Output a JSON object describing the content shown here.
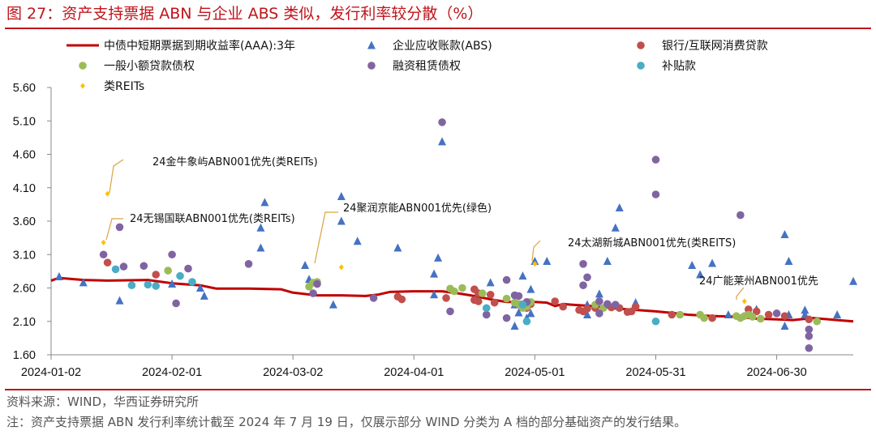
{
  "title": "图 27：资产支持票据 ABN 与企业 ABS 类似，发行利率较分散（%）",
  "source": "资料来源：WIND，华西证券研究所",
  "note": "注：资产支持票据 ABN 发行利率统计截至 2024 年 7 月 19 日，仅展示部分 WIND 分类为 A 档的部分基础资产的发行结果。",
  "chart_data": {
    "type": "scatter",
    "x_axis": {
      "type": "date",
      "range": [
        "2024-01-02",
        "2024-07-19"
      ],
      "tick_labels": [
        "2024-01-02",
        "2024-02-01",
        "2024-03-02",
        "2024-04-01",
        "2024-05-01",
        "2024-05-31",
        "2024-06-30"
      ],
      "tick_dates": [
        "2024-01-02",
        "2024-02-01",
        "2024-03-02",
        "2024-04-01",
        "2024-05-01",
        "2024-05-31",
        "2024-06-30"
      ]
    },
    "y_axis": {
      "range": [
        1.6,
        5.6
      ],
      "tick_labels": [
        "5.60",
        "5.10",
        "4.60",
        "4.10",
        "3.60",
        "3.10",
        "2.60",
        "2.10",
        "1.60"
      ],
      "ticks": [
        5.6,
        5.1,
        4.6,
        4.1,
        3.6,
        3.1,
        2.6,
        2.1,
        1.6
      ]
    },
    "grid": false,
    "legend_position": "top",
    "series": [
      {
        "name": "中债中短期票据到期收益率(AAA):3年",
        "kind": "line",
        "color": "#c00000",
        "points": [
          [
            "2024-01-02",
            2.71
          ],
          [
            "2024-01-04",
            2.75
          ],
          [
            "2024-01-10",
            2.72
          ],
          [
            "2024-01-16",
            2.71
          ],
          [
            "2024-01-26",
            2.72
          ],
          [
            "2024-02-01",
            2.67
          ],
          [
            "2024-02-08",
            2.64
          ],
          [
            "2024-02-12",
            2.59
          ],
          [
            "2024-02-20",
            2.59
          ],
          [
            "2024-02-28",
            2.58
          ],
          [
            "2024-03-02",
            2.53
          ],
          [
            "2024-03-08",
            2.49
          ],
          [
            "2024-03-14",
            2.49
          ],
          [
            "2024-03-20",
            2.48
          ],
          [
            "2024-03-23",
            2.5
          ],
          [
            "2024-03-26",
            2.54
          ],
          [
            "2024-04-01",
            2.55
          ],
          [
            "2024-04-08",
            2.55
          ],
          [
            "2024-04-12",
            2.52
          ],
          [
            "2024-04-16",
            2.48
          ],
          [
            "2024-04-20",
            2.43
          ],
          [
            "2024-04-24",
            2.39
          ],
          [
            "2024-05-01",
            2.39
          ],
          [
            "2024-05-04",
            2.38
          ],
          [
            "2024-05-06",
            2.33
          ],
          [
            "2024-05-08",
            2.36
          ],
          [
            "2024-05-10",
            2.35
          ],
          [
            "2024-05-15",
            2.33
          ],
          [
            "2024-05-22",
            2.29
          ],
          [
            "2024-05-31",
            2.25
          ],
          [
            "2024-06-05",
            2.22
          ],
          [
            "2024-06-08",
            2.2
          ],
          [
            "2024-06-14",
            2.18
          ],
          [
            "2024-06-20",
            2.17
          ],
          [
            "2024-06-25",
            2.14
          ],
          [
            "2024-06-30",
            2.13
          ],
          [
            "2024-07-04",
            2.12
          ],
          [
            "2024-07-09",
            2.15
          ],
          [
            "2024-07-15",
            2.12
          ],
          [
            "2024-07-19",
            2.1
          ]
        ]
      },
      {
        "name": "企业应收账款(ABS)",
        "kind": "triangle",
        "color": "#4472c4",
        "points": [
          [
            "2024-01-04",
            2.77
          ],
          [
            "2024-01-10",
            2.68
          ],
          [
            "2024-01-19",
            2.41
          ],
          [
            "2024-02-01",
            2.66
          ],
          [
            "2024-02-08",
            2.6
          ],
          [
            "2024-02-09",
            2.48
          ],
          [
            "2024-02-23",
            3.2
          ],
          [
            "2024-02-23",
            3.5
          ],
          [
            "2024-02-24",
            3.88
          ],
          [
            "2024-03-05",
            2.94
          ],
          [
            "2024-03-06",
            2.73
          ],
          [
            "2024-03-12",
            2.35
          ],
          [
            "2024-03-14",
            3.97
          ],
          [
            "2024-03-14",
            3.6
          ],
          [
            "2024-03-18",
            3.3
          ],
          [
            "2024-03-28",
            3.2
          ],
          [
            "2024-04-06",
            2.81
          ],
          [
            "2024-04-06",
            2.5
          ],
          [
            "2024-04-07",
            3.05
          ],
          [
            "2024-04-08",
            4.79
          ],
          [
            "2024-04-20",
            2.68
          ],
          [
            "2024-04-26",
            2.35
          ],
          [
            "2024-04-26",
            2.03
          ],
          [
            "2024-04-27",
            2.23
          ],
          [
            "2024-04-28",
            2.78
          ],
          [
            "2024-04-29",
            2.15
          ],
          [
            "2024-04-30",
            2.58
          ],
          [
            "2024-04-30",
            2.22
          ],
          [
            "2024-05-01",
            3.0
          ],
          [
            "2024-05-04",
            3.0
          ],
          [
            "2024-05-14",
            2.35
          ],
          [
            "2024-05-14",
            2.2
          ],
          [
            "2024-05-17",
            2.51
          ],
          [
            "2024-05-19",
            3.0
          ],
          [
            "2024-05-21",
            3.5
          ],
          [
            "2024-05-22",
            3.8
          ],
          [
            "2024-05-26",
            2.38
          ],
          [
            "2024-06-09",
            2.94
          ],
          [
            "2024-06-11",
            2.8
          ],
          [
            "2024-06-14",
            2.97
          ],
          [
            "2024-06-18",
            2.2
          ],
          [
            "2024-06-23",
            2.27
          ],
          [
            "2024-06-25",
            2.28
          ],
          [
            "2024-07-02",
            2.03
          ],
          [
            "2024-07-02",
            3.4
          ],
          [
            "2024-07-03",
            3.0
          ],
          [
            "2024-07-03",
            2.2
          ],
          [
            "2024-07-07",
            2.27
          ],
          [
            "2024-07-07",
            2.2
          ],
          [
            "2024-07-15",
            2.2
          ],
          [
            "2024-07-19",
            2.7
          ]
        ]
      },
      {
        "name": "银行/互联网消费贷款",
        "kind": "circle",
        "color": "#c0504d",
        "points": [
          [
            "2024-01-16",
            2.98
          ],
          [
            "2024-01-28",
            2.8
          ],
          [
            "2024-03-28",
            2.47
          ],
          [
            "2024-03-29",
            2.43
          ],
          [
            "2024-04-09",
            2.45
          ],
          [
            "2024-04-16",
            2.58
          ],
          [
            "2024-04-16",
            2.42
          ],
          [
            "2024-04-17",
            2.4
          ],
          [
            "2024-04-17",
            2.52
          ],
          [
            "2024-04-20",
            2.5
          ],
          [
            "2024-04-21",
            2.38
          ],
          [
            "2024-04-29",
            2.3
          ],
          [
            "2024-04-30",
            2.36
          ],
          [
            "2024-05-06",
            2.4
          ],
          [
            "2024-05-08",
            2.32
          ],
          [
            "2024-05-12",
            2.27
          ],
          [
            "2024-05-13",
            2.25
          ],
          [
            "2024-05-14",
            2.29
          ],
          [
            "2024-05-16",
            2.3
          ],
          [
            "2024-05-20",
            2.31
          ],
          [
            "2024-05-22",
            2.3
          ],
          [
            "2024-05-24",
            2.24
          ],
          [
            "2024-05-25",
            2.25
          ],
          [
            "2024-05-26",
            2.32
          ],
          [
            "2024-06-04",
            2.2
          ],
          [
            "2024-06-14",
            2.15
          ],
          [
            "2024-06-23",
            2.28
          ],
          [
            "2024-06-25",
            2.25
          ],
          [
            "2024-06-28",
            2.2
          ],
          [
            "2024-07-02",
            2.18
          ],
          [
            "2024-07-08",
            2.13
          ]
        ]
      },
      {
        "name": "一般小额贷款债权",
        "kind": "circle",
        "color": "#9bbb59",
        "points": [
          [
            "2024-01-31",
            2.86
          ],
          [
            "2024-03-06",
            2.62
          ],
          [
            "2024-03-07",
            2.68
          ],
          [
            "2024-03-08",
            2.69
          ],
          [
            "2024-04-10",
            2.59
          ],
          [
            "2024-04-11",
            2.55
          ],
          [
            "2024-04-13",
            2.6
          ],
          [
            "2024-04-18",
            2.52
          ],
          [
            "2024-04-24",
            2.44
          ],
          [
            "2024-04-26",
            2.38
          ],
          [
            "2024-04-27",
            2.36
          ],
          [
            "2024-04-28",
            2.3
          ],
          [
            "2024-04-29",
            2.32
          ],
          [
            "2024-04-30",
            2.39
          ],
          [
            "2024-05-16",
            2.35
          ],
          [
            "2024-05-18",
            2.3
          ],
          [
            "2024-06-06",
            2.2
          ],
          [
            "2024-06-11",
            2.2
          ],
          [
            "2024-06-12",
            2.15
          ],
          [
            "2024-06-20",
            2.18
          ],
          [
            "2024-06-21",
            2.15
          ],
          [
            "2024-06-22",
            2.18
          ],
          [
            "2024-06-23",
            2.2
          ],
          [
            "2024-06-24",
            2.17
          ],
          [
            "2024-06-26",
            2.14
          ],
          [
            "2024-07-10",
            2.1
          ]
        ]
      },
      {
        "name": "融资租赁债权",
        "kind": "circle",
        "color": "#8064a2",
        "points": [
          [
            "2024-01-15",
            3.1
          ],
          [
            "2024-01-19",
            3.51
          ],
          [
            "2024-01-20",
            2.92
          ],
          [
            "2024-01-25",
            2.93
          ],
          [
            "2024-02-01",
            3.1
          ],
          [
            "2024-02-02",
            2.37
          ],
          [
            "2024-02-05",
            2.89
          ],
          [
            "2024-02-20",
            2.96
          ],
          [
            "2024-03-07",
            2.52
          ],
          [
            "2024-03-08",
            2.66
          ],
          [
            "2024-03-22",
            2.45
          ],
          [
            "2024-04-08",
            5.08
          ],
          [
            "2024-04-10",
            2.25
          ],
          [
            "2024-04-19",
            2.2
          ],
          [
            "2024-04-24",
            2.72
          ],
          [
            "2024-04-24",
            2.15
          ],
          [
            "2024-04-26",
            2.49
          ],
          [
            "2024-04-27",
            2.48
          ],
          [
            "2024-04-29",
            2.39
          ],
          [
            "2024-05-13",
            2.96
          ],
          [
            "2024-05-13",
            2.64
          ],
          [
            "2024-05-14",
            2.76
          ],
          [
            "2024-05-17",
            2.4
          ],
          [
            "2024-05-17",
            2.22
          ],
          [
            "2024-05-19",
            2.36
          ],
          [
            "2024-05-21",
            2.35
          ],
          [
            "2024-05-31",
            4.52
          ],
          [
            "2024-05-31",
            4.0
          ],
          [
            "2024-06-21",
            3.69
          ],
          [
            "2024-06-30",
            2.22
          ],
          [
            "2024-07-08",
            1.98
          ],
          [
            "2024-07-08",
            1.88
          ],
          [
            "2024-07-08",
            1.7
          ]
        ]
      },
      {
        "name": "补贴款",
        "kind": "circle",
        "color": "#4bacc6",
        "points": [
          [
            "2024-01-18",
            2.88
          ],
          [
            "2024-01-22",
            2.64
          ],
          [
            "2024-01-26",
            2.65
          ],
          [
            "2024-01-28",
            2.63
          ],
          [
            "2024-02-03",
            2.78
          ],
          [
            "2024-02-06",
            2.69
          ],
          [
            "2024-04-19",
            2.3
          ],
          [
            "2024-04-28",
            2.35
          ],
          [
            "2024-04-29",
            2.1
          ],
          [
            "2024-05-31",
            2.1
          ]
        ]
      },
      {
        "name": "类REITs",
        "kind": "diamond",
        "color": "#ffc000",
        "points": [
          [
            "2024-01-16",
            4.01
          ],
          [
            "2024-01-15",
            3.28
          ],
          [
            "2024-03-14",
            2.91
          ],
          [
            "2024-05-01",
            2.96
          ],
          [
            "2024-06-22",
            2.4
          ]
        ]
      }
    ],
    "annotations": [
      {
        "text": "24金牛象屿ABN001优先(类REITs)",
        "point": [
          "2024-01-16",
          4.01
        ]
      },
      {
        "text": "24无锡国联ABN001优先(类REITs)",
        "point": [
          "2024-01-15",
          3.28
        ]
      },
      {
        "text": "24聚润京能ABN001优先(绿色)",
        "point": [
          "2024-03-14",
          2.91
        ]
      },
      {
        "text": "24太湖新城ABN001优先(类REITS)",
        "point": [
          "2024-05-01",
          2.96
        ]
      },
      {
        "text": "24广能莱州ABN001优先",
        "point": [
          "2024-06-22",
          2.4
        ]
      }
    ]
  }
}
